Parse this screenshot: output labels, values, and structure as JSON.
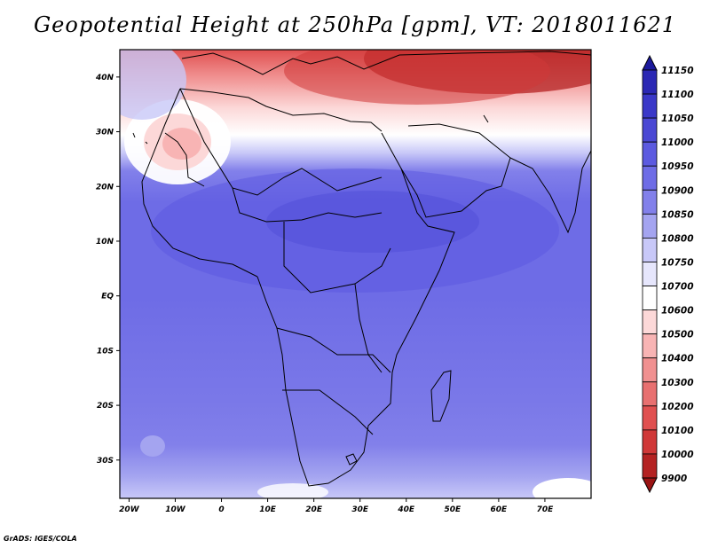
{
  "title": "Geopotential Height at 250hPa [gpm], VT: 2018011621",
  "credit": "GrADS: IGES/COLA",
  "map": {
    "lon_range": [
      -22,
      80
    ],
    "lat_range": [
      -37,
      45
    ],
    "lon_ticks": [
      {
        "value": -20,
        "label": "20W"
      },
      {
        "value": -10,
        "label": "10W"
      },
      {
        "value": 0,
        "label": "0"
      },
      {
        "value": 10,
        "label": "10E"
      },
      {
        "value": 20,
        "label": "20E"
      },
      {
        "value": 30,
        "label": "30E"
      },
      {
        "value": 40,
        "label": "40E"
      },
      {
        "value": 50,
        "label": "50E"
      },
      {
        "value": 60,
        "label": "60E"
      },
      {
        "value": 70,
        "label": "70E"
      }
    ],
    "lat_ticks": [
      {
        "value": 40,
        "label": "40N"
      },
      {
        "value": 30,
        "label": "30N"
      },
      {
        "value": 20,
        "label": "20N"
      },
      {
        "value": 10,
        "label": "10N"
      },
      {
        "value": 0,
        "label": "EQ"
      },
      {
        "value": -10,
        "label": "10S"
      },
      {
        "value": -20,
        "label": "20S"
      },
      {
        "value": -30,
        "label": "30S"
      }
    ]
  },
  "colorbar": {
    "labels": [
      "11150",
      "11100",
      "11050",
      "11000",
      "10950",
      "10900",
      "10850",
      "10800",
      "10750",
      "10700",
      "10600",
      "10500",
      "10400",
      "10300",
      "10200",
      "10100",
      "10000",
      "9900"
    ],
    "colors": [
      "#1c1a9c",
      "#2b28b4",
      "#3a38c8",
      "#4a48d4",
      "#5c5ae0",
      "#6e6ce6",
      "#8280ea",
      "#a4a4f0",
      "#c8c8f8",
      "#e6e6fc",
      "#ffffff",
      "#fcd8d8",
      "#f8b4b4",
      "#f09090",
      "#e87070",
      "#e05050",
      "#d03838",
      "#b42222",
      "#9a1414"
    ]
  }
}
